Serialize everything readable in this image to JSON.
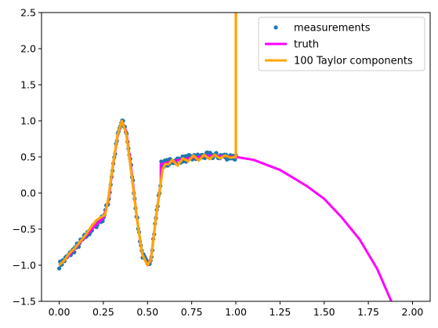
{
  "chart_data": {
    "type": "line",
    "title": "",
    "xlabel": "",
    "ylabel": "",
    "xlim": [
      -0.1,
      2.1
    ],
    "ylim": [
      -1.5,
      2.5
    ],
    "xticks": [
      0.0,
      0.25,
      0.5,
      0.75,
      1.0,
      1.25,
      1.5,
      1.75,
      2.0
    ],
    "xtick_labels": [
      "0.00",
      "0.25",
      "0.50",
      "0.75",
      "1.00",
      "1.25",
      "1.50",
      "1.75",
      "2.00"
    ],
    "yticks": [
      -1.5,
      -1.0,
      -0.5,
      0.0,
      0.5,
      1.0,
      1.5,
      2.0,
      2.5
    ],
    "ytick_labels": [
      "−1.5",
      "−1.0",
      "−0.5",
      "0.0",
      "0.5",
      "1.0",
      "1.5",
      "2.0",
      "2.5"
    ],
    "grid": false,
    "legend_position": "top-right",
    "series": [
      {
        "name": "measurements",
        "kind": "scatter",
        "color": "#1f77b4",
        "x_range": [
          0.0,
          1.0
        ],
        "n_points": 200
      },
      {
        "name": "truth",
        "kind": "line",
        "color": "#ff00ff",
        "points": [
          [
            0.0,
            -1.0
          ],
          [
            0.05,
            -0.88
          ],
          [
            0.1,
            -0.74
          ],
          [
            0.15,
            -0.6
          ],
          [
            0.2,
            -0.46
          ],
          [
            0.25,
            -0.34
          ],
          [
            0.28,
            -0.1
          ],
          [
            0.3,
            0.3
          ],
          [
            0.33,
            0.78
          ],
          [
            0.355,
            1.0
          ],
          [
            0.38,
            0.85
          ],
          [
            0.41,
            0.3
          ],
          [
            0.44,
            -0.35
          ],
          [
            0.47,
            -0.85
          ],
          [
            0.5,
            -1.0
          ],
          [
            0.52,
            -0.9
          ],
          [
            0.55,
            -0.3
          ],
          [
            0.575,
            0.15
          ],
          [
            0.575,
            0.4
          ],
          [
            0.7,
            0.47
          ],
          [
            0.85,
            0.52
          ],
          [
            1.0,
            0.5
          ],
          [
            1.1,
            0.46
          ],
          [
            1.25,
            0.32
          ],
          [
            1.4,
            0.1
          ],
          [
            1.5,
            -0.08
          ],
          [
            1.6,
            -0.34
          ],
          [
            1.7,
            -0.64
          ],
          [
            1.8,
            -1.05
          ],
          [
            1.88,
            -1.5
          ]
        ]
      },
      {
        "name": "100 Taylor components",
        "kind": "line",
        "color": "#ffa500",
        "points": [
          [
            0.0,
            -1.0
          ],
          [
            0.03,
            -0.93
          ],
          [
            0.06,
            -0.83
          ],
          [
            0.09,
            -0.76
          ],
          [
            0.12,
            -0.67
          ],
          [
            0.15,
            -0.58
          ],
          [
            0.18,
            -0.47
          ],
          [
            0.21,
            -0.38
          ],
          [
            0.24,
            -0.33
          ],
          [
            0.26,
            -0.3
          ],
          [
            0.28,
            -0.05
          ],
          [
            0.3,
            0.32
          ],
          [
            0.33,
            0.8
          ],
          [
            0.355,
            1.0
          ],
          [
            0.38,
            0.82
          ],
          [
            0.41,
            0.25
          ],
          [
            0.44,
            -0.35
          ],
          [
            0.47,
            -0.85
          ],
          [
            0.5,
            -1.0
          ],
          [
            0.52,
            -0.92
          ],
          [
            0.55,
            -0.3
          ],
          [
            0.57,
            0.05
          ],
          [
            0.585,
            0.32
          ],
          [
            0.6,
            0.4
          ],
          [
            0.62,
            0.4
          ],
          [
            0.64,
            0.46
          ],
          [
            0.67,
            0.38
          ],
          [
            0.7,
            0.48
          ],
          [
            0.73,
            0.44
          ],
          [
            0.76,
            0.52
          ],
          [
            0.79,
            0.45
          ],
          [
            0.82,
            0.53
          ],
          [
            0.85,
            0.47
          ],
          [
            0.88,
            0.53
          ],
          [
            0.91,
            0.48
          ],
          [
            0.94,
            0.52
          ],
          [
            0.97,
            0.49
          ],
          [
            1.0,
            0.5
          ],
          [
            1.0,
            2.6
          ]
        ]
      }
    ]
  }
}
